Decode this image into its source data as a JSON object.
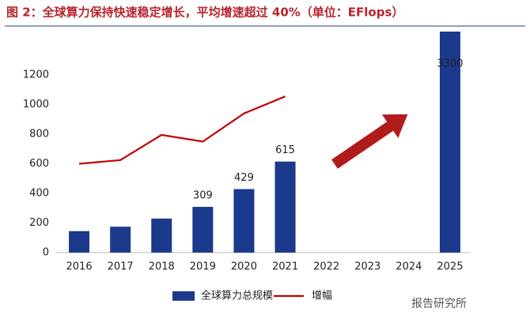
{
  "chart_data": {
    "type": "bar",
    "title": "图 2：全球算力保持快速稳定增长，平均增速超过 40%（单位：EFlops）",
    "categories": [
      "2016",
      "2017",
      "2018",
      "2019",
      "2020",
      "2021",
      "2022",
      "2023",
      "2024",
      "2025"
    ],
    "series": [
      {
        "name": "全球算力总规模",
        "color": "#1b3a8c",
        "type": "bar",
        "values": [
          145,
          175,
          230,
          309,
          429,
          615,
          null,
          null,
          null,
          3300
        ],
        "value_labels": [
          null,
          null,
          null,
          "309",
          "429",
          "615",
          null,
          null,
          null,
          "3300"
        ]
      },
      {
        "name": "增幅",
        "color": "#c00000",
        "type": "line",
        "values": [
          600,
          625,
          795,
          750,
          940,
          1055,
          null,
          null,
          null,
          null
        ]
      }
    ],
    "ylim": [
      0,
      1200
    ],
    "yticks": [
      0,
      200,
      400,
      600,
      800,
      1000,
      1200
    ],
    "grid": false,
    "legend": "bottom",
    "watermark": "报告研究所"
  }
}
